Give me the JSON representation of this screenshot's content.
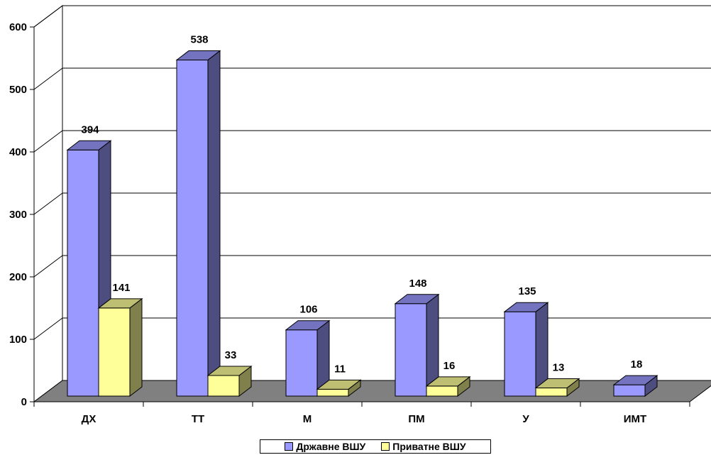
{
  "chart_data": {
    "type": "bar",
    "categories": [
      "ДХ",
      "ТТ",
      "М",
      "ПМ",
      "У",
      "ИМТ"
    ],
    "series": [
      {
        "name": "Државне ВШУ",
        "values": [
          394,
          538,
          106,
          148,
          135,
          18
        ],
        "color": "#9999ff"
      },
      {
        "name": "Приватне ВШУ",
        "values": [
          141,
          33,
          11,
          16,
          13,
          null
        ],
        "color": "#ffff99"
      }
    ],
    "ylim": [
      0,
      600
    ],
    "yticks": [
      "0",
      "100",
      "200",
      "300",
      "400",
      "500",
      "600"
    ],
    "grid": true,
    "legend_position": "bottom",
    "style": "3d-clustered-column",
    "floor_color": "#808080"
  }
}
